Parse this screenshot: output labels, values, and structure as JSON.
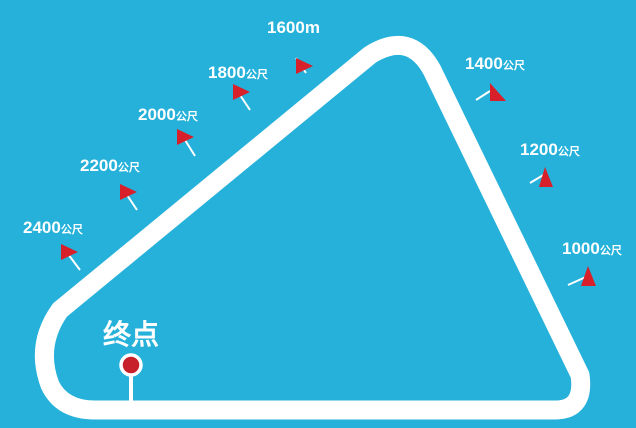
{
  "colors": {
    "background": "#25b1d9",
    "track": "#ffffff",
    "flag": "#d8202a",
    "finish_marker": "#c8202a"
  },
  "finish": {
    "label": "终点"
  },
  "markers": [
    {
      "id": "1600",
      "distance": "1600",
      "unit": "m"
    },
    {
      "id": "1400",
      "distance": "1400",
      "unit": "公尺"
    },
    {
      "id": "1800",
      "distance": "1800",
      "unit": "公尺"
    },
    {
      "id": "2000",
      "distance": "2000",
      "unit": "公尺"
    },
    {
      "id": "1200",
      "distance": "1200",
      "unit": "公尺"
    },
    {
      "id": "2200",
      "distance": "2200",
      "unit": "公尺"
    },
    {
      "id": "2400",
      "distance": "2400",
      "unit": "公尺"
    },
    {
      "id": "1000",
      "distance": "1000",
      "unit": "公尺"
    }
  ]
}
